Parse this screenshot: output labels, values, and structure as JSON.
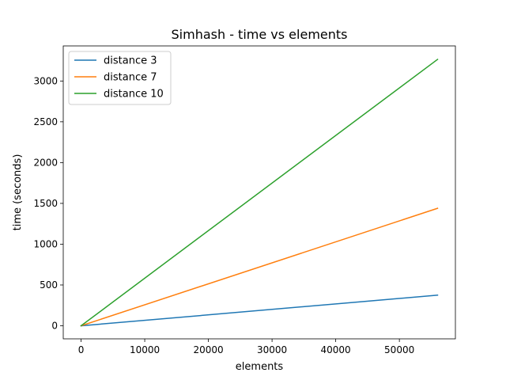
{
  "chart_data": {
    "type": "line",
    "title": "Simhash - time vs elements",
    "xlabel": "elements",
    "ylabel": "time (seconds)",
    "xlim": [
      -2800,
      58800
    ],
    "ylim": [
      -160,
      3430
    ],
    "xticks": [
      0,
      10000,
      20000,
      30000,
      40000,
      50000
    ],
    "yticks": [
      0,
      500,
      1000,
      1500,
      2000,
      2500,
      3000
    ],
    "grid": false,
    "legend_position": "top-left",
    "series": [
      {
        "name": "distance 3",
        "color": "#1f77b4",
        "x": [
          0,
          56000
        ],
        "y": [
          0,
          375
        ]
      },
      {
        "name": "distance 7",
        "color": "#ff7f0e",
        "x": [
          0,
          56000
        ],
        "y": [
          0,
          1440
        ]
      },
      {
        "name": "distance 10",
        "color": "#2ca02c",
        "x": [
          0,
          56000
        ],
        "y": [
          0,
          3265
        ]
      }
    ]
  }
}
